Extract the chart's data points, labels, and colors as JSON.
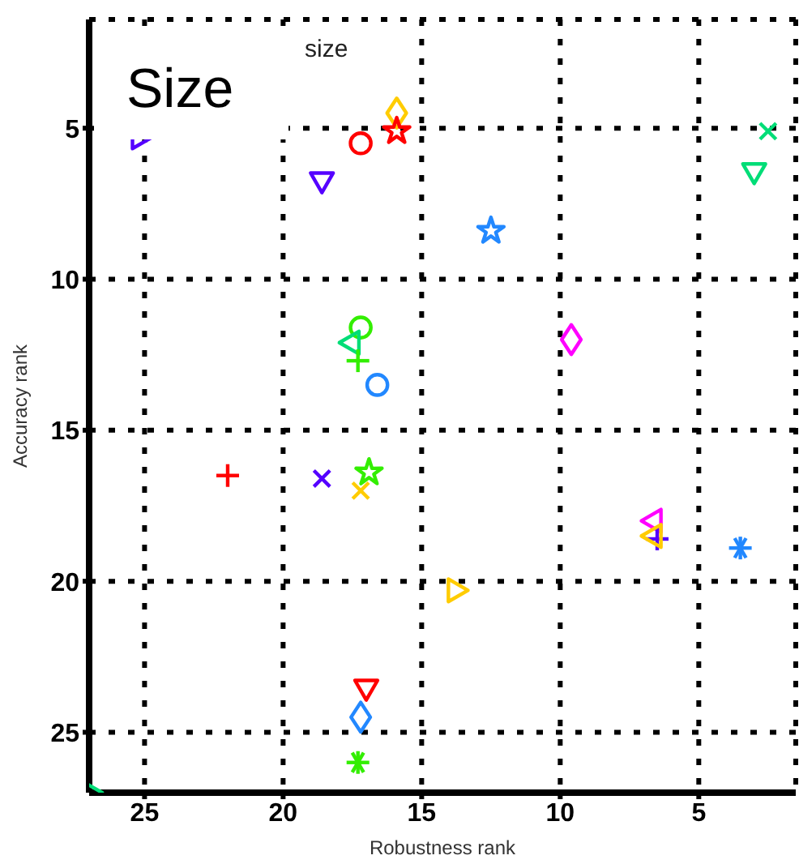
{
  "chart_data": {
    "type": "scatter",
    "xlabel": "Robustness rank",
    "ylabel": "Accuracy rank",
    "xlim": [
      27,
      1.5
    ],
    "xticks": [
      25,
      20,
      15,
      10,
      5
    ],
    "ylim": [
      27,
      1.4
    ],
    "yticks": [
      5,
      10,
      15,
      20,
      25
    ],
    "grid": true,
    "line_style": "dotted",
    "annotations": [
      "Size",
      "size"
    ],
    "series": [
      {
        "color": "#5500ff",
        "marker": "triangle-right",
        "x": [
          25.2
        ],
        "values": [
          5.3
        ]
      },
      {
        "color": "#ffcc00",
        "marker": "diamond",
        "x": [
          15.9
        ],
        "values": [
          4.5
        ]
      },
      {
        "color": "#ff0000",
        "marker": "star",
        "x": [
          15.9
        ],
        "values": [
          5.1
        ]
      },
      {
        "color": "#ff0000",
        "marker": "circle",
        "x": [
          17.2
        ],
        "values": [
          5.5
        ]
      },
      {
        "color": "#5500ff",
        "marker": "triangle-down",
        "x": [
          18.6
        ],
        "values": [
          6.7
        ]
      },
      {
        "color": "#2288ff",
        "marker": "star",
        "x": [
          12.5
        ],
        "values": [
          8.4
        ]
      },
      {
        "color": "#00dd77",
        "marker": "x",
        "x": [
          2.5
        ],
        "values": [
          5.1
        ]
      },
      {
        "color": "#00dd77",
        "marker": "triangle-down",
        "x": [
          3.0
        ],
        "values": [
          6.4
        ]
      },
      {
        "color": "#33ee00",
        "marker": "circle",
        "x": [
          17.2
        ],
        "values": [
          11.6
        ]
      },
      {
        "color": "#00dd77",
        "marker": "triangle-left",
        "x": [
          17.5
        ],
        "values": [
          12.1
        ]
      },
      {
        "color": "#33ee00",
        "marker": "plus",
        "x": [
          17.3
        ],
        "values": [
          12.7
        ]
      },
      {
        "color": "#2288ff",
        "marker": "circle",
        "x": [
          16.6
        ],
        "values": [
          13.5
        ]
      },
      {
        "color": "#ff00ff",
        "marker": "diamond",
        "x": [
          9.6
        ],
        "values": [
          12.0
        ]
      },
      {
        "color": "#ff0000",
        "marker": "plus",
        "x": [
          22.0
        ],
        "values": [
          16.5
        ]
      },
      {
        "color": "#5500ff",
        "marker": "x",
        "x": [
          18.6
        ],
        "values": [
          16.6
        ]
      },
      {
        "color": "#33ee00",
        "marker": "star",
        "x": [
          16.9
        ],
        "values": [
          16.4
        ]
      },
      {
        "color": "#ffcc00",
        "marker": "x",
        "x": [
          17.2
        ],
        "values": [
          17.0
        ]
      },
      {
        "color": "#ff00ff",
        "marker": "triangle-left",
        "x": [
          6.6
        ],
        "values": [
          18.0
        ]
      },
      {
        "color": "#5500ff",
        "marker": "plus",
        "x": [
          6.5
        ],
        "values": [
          18.6
        ]
      },
      {
        "color": "#ffcc00",
        "marker": "triangle-left",
        "x": [
          6.6
        ],
        "values": [
          18.5
        ]
      },
      {
        "color": "#2288ff",
        "marker": "cross",
        "x": [
          3.5
        ],
        "values": [
          18.9
        ]
      },
      {
        "color": "#ffcc00",
        "marker": "triangle-right",
        "x": [
          13.8
        ],
        "values": [
          20.3
        ]
      },
      {
        "color": "#ff0000",
        "marker": "triangle-down",
        "x": [
          17.0
        ],
        "values": [
          23.5
        ]
      },
      {
        "color": "#2288ff",
        "marker": "diamond",
        "x": [
          17.2
        ],
        "values": [
          24.5
        ]
      },
      {
        "color": "#33ee00",
        "marker": "cross",
        "x": [
          17.3
        ],
        "values": [
          26.0
        ]
      },
      {
        "color": "#00dd77",
        "marker": "triangle-right",
        "x": [
          27.0
        ],
        "values": [
          27.0
        ]
      }
    ]
  }
}
